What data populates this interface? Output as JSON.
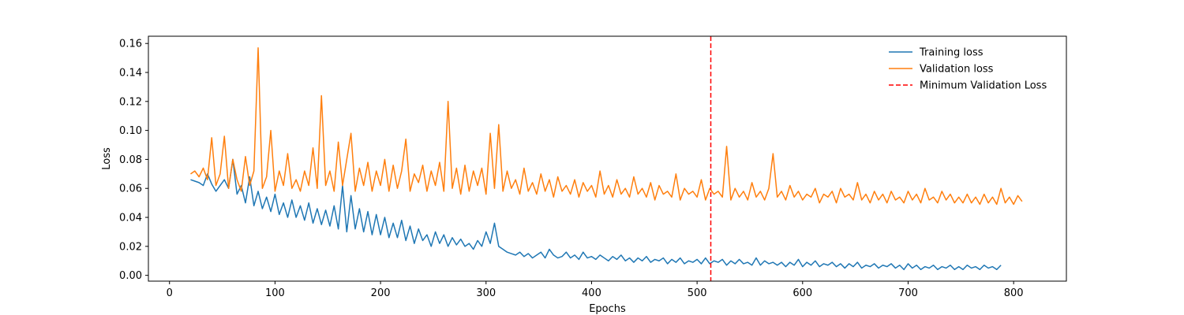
{
  "chart_data": {
    "type": "line",
    "title": "",
    "xlabel": "Epochs",
    "ylabel": "Loss",
    "xlim": [
      -20,
      850
    ],
    "ylim": [
      -0.004,
      0.165
    ],
    "xticks": [
      0,
      100,
      200,
      300,
      400,
      500,
      600,
      700,
      800
    ],
    "yticks": [
      0.0,
      0.02,
      0.04,
      0.06,
      0.08,
      0.1,
      0.12,
      0.14,
      0.16
    ],
    "ytick_labels": [
      "0.00",
      "0.02",
      "0.04",
      "0.06",
      "0.08",
      "0.10",
      "0.12",
      "0.14",
      "0.16"
    ],
    "grid": false,
    "legend_position": "top-right",
    "series": [
      {
        "name": "Training loss",
        "color": "#1f77b4",
        "style": "solid",
        "x_start": 20,
        "x_step": 4,
        "values": [
          0.066,
          0.065,
          0.064,
          0.062,
          0.07,
          0.063,
          0.058,
          0.062,
          0.066,
          0.06,
          0.08,
          0.056,
          0.062,
          0.05,
          0.068,
          0.048,
          0.058,
          0.046,
          0.054,
          0.044,
          0.056,
          0.042,
          0.05,
          0.04,
          0.052,
          0.04,
          0.048,
          0.038,
          0.05,
          0.036,
          0.046,
          0.035,
          0.045,
          0.034,
          0.048,
          0.032,
          0.062,
          0.03,
          0.055,
          0.032,
          0.046,
          0.03,
          0.044,
          0.028,
          0.042,
          0.028,
          0.04,
          0.026,
          0.036,
          0.026,
          0.038,
          0.024,
          0.034,
          0.022,
          0.032,
          0.024,
          0.028,
          0.02,
          0.03,
          0.022,
          0.028,
          0.02,
          0.026,
          0.021,
          0.025,
          0.02,
          0.022,
          0.018,
          0.024,
          0.02,
          0.03,
          0.022,
          0.036,
          0.02,
          0.018,
          0.016,
          0.015,
          0.014,
          0.016,
          0.013,
          0.015,
          0.012,
          0.014,
          0.016,
          0.012,
          0.018,
          0.014,
          0.012,
          0.013,
          0.016,
          0.012,
          0.014,
          0.011,
          0.016,
          0.012,
          0.013,
          0.011,
          0.014,
          0.012,
          0.01,
          0.013,
          0.011,
          0.014,
          0.01,
          0.012,
          0.009,
          0.012,
          0.01,
          0.013,
          0.009,
          0.011,
          0.01,
          0.012,
          0.008,
          0.011,
          0.009,
          0.012,
          0.008,
          0.01,
          0.009,
          0.011,
          0.008,
          0.012,
          0.008,
          0.01,
          0.009,
          0.011,
          0.007,
          0.01,
          0.008,
          0.011,
          0.008,
          0.009,
          0.007,
          0.012,
          0.007,
          0.01,
          0.008,
          0.009,
          0.007,
          0.009,
          0.006,
          0.009,
          0.007,
          0.011,
          0.006,
          0.009,
          0.007,
          0.01,
          0.006,
          0.008,
          0.007,
          0.009,
          0.006,
          0.008,
          0.005,
          0.008,
          0.006,
          0.009,
          0.005,
          0.007,
          0.006,
          0.008,
          0.005,
          0.007,
          0.006,
          0.008,
          0.005,
          0.007,
          0.004,
          0.008,
          0.005,
          0.007,
          0.004,
          0.006,
          0.005,
          0.007,
          0.004,
          0.006,
          0.005,
          0.007,
          0.004,
          0.006,
          0.004,
          0.007,
          0.005,
          0.006,
          0.004,
          0.007,
          0.005,
          0.006,
          0.004,
          0.007
        ]
      },
      {
        "name": "Validation loss",
        "color": "#ff7f0e",
        "style": "solid",
        "x_start": 20,
        "x_step": 4,
        "values": [
          0.07,
          0.072,
          0.068,
          0.074,
          0.066,
          0.095,
          0.062,
          0.07,
          0.096,
          0.06,
          0.08,
          0.066,
          0.058,
          0.082,
          0.062,
          0.072,
          0.157,
          0.06,
          0.068,
          0.1,
          0.058,
          0.072,
          0.062,
          0.084,
          0.06,
          0.066,
          0.058,
          0.072,
          0.062,
          0.088,
          0.06,
          0.124,
          0.062,
          0.072,
          0.058,
          0.092,
          0.062,
          0.08,
          0.098,
          0.058,
          0.074,
          0.062,
          0.078,
          0.058,
          0.072,
          0.062,
          0.08,
          0.058,
          0.076,
          0.06,
          0.072,
          0.094,
          0.058,
          0.07,
          0.064,
          0.076,
          0.058,
          0.072,
          0.062,
          0.078,
          0.058,
          0.12,
          0.06,
          0.074,
          0.056,
          0.076,
          0.058,
          0.072,
          0.062,
          0.074,
          0.056,
          0.098,
          0.06,
          0.104,
          0.058,
          0.072,
          0.06,
          0.066,
          0.056,
          0.074,
          0.058,
          0.064,
          0.056,
          0.07,
          0.058,
          0.066,
          0.054,
          0.068,
          0.058,
          0.062,
          0.056,
          0.066,
          0.054,
          0.064,
          0.058,
          0.062,
          0.054,
          0.072,
          0.056,
          0.062,
          0.054,
          0.066,
          0.056,
          0.06,
          0.054,
          0.068,
          0.056,
          0.06,
          0.054,
          0.064,
          0.052,
          0.062,
          0.056,
          0.058,
          0.054,
          0.07,
          0.052,
          0.06,
          0.056,
          0.058,
          0.054,
          0.066,
          0.052,
          0.06,
          0.056,
          0.058,
          0.054,
          0.089,
          0.052,
          0.06,
          0.054,
          0.058,
          0.052,
          0.064,
          0.054,
          0.058,
          0.052,
          0.06,
          0.084,
          0.054,
          0.058,
          0.052,
          0.062,
          0.054,
          0.058,
          0.052,
          0.056,
          0.054,
          0.06,
          0.05,
          0.056,
          0.054,
          0.058,
          0.05,
          0.06,
          0.054,
          0.056,
          0.052,
          0.064,
          0.052,
          0.056,
          0.05,
          0.058,
          0.052,
          0.056,
          0.05,
          0.058,
          0.052,
          0.054,
          0.05,
          0.058,
          0.052,
          0.056,
          0.05,
          0.06,
          0.052,
          0.054,
          0.05,
          0.058,
          0.052,
          0.056,
          0.05,
          0.054,
          0.05,
          0.056,
          0.05,
          0.054,
          0.049,
          0.056,
          0.05,
          0.054,
          0.049,
          0.06,
          0.05,
          0.054,
          0.049,
          0.055,
          0.051
        ]
      }
    ],
    "vline": {
      "name": "Minimum Validation Loss",
      "x": 513,
      "color": "#ff0000",
      "style": "dashed"
    }
  }
}
